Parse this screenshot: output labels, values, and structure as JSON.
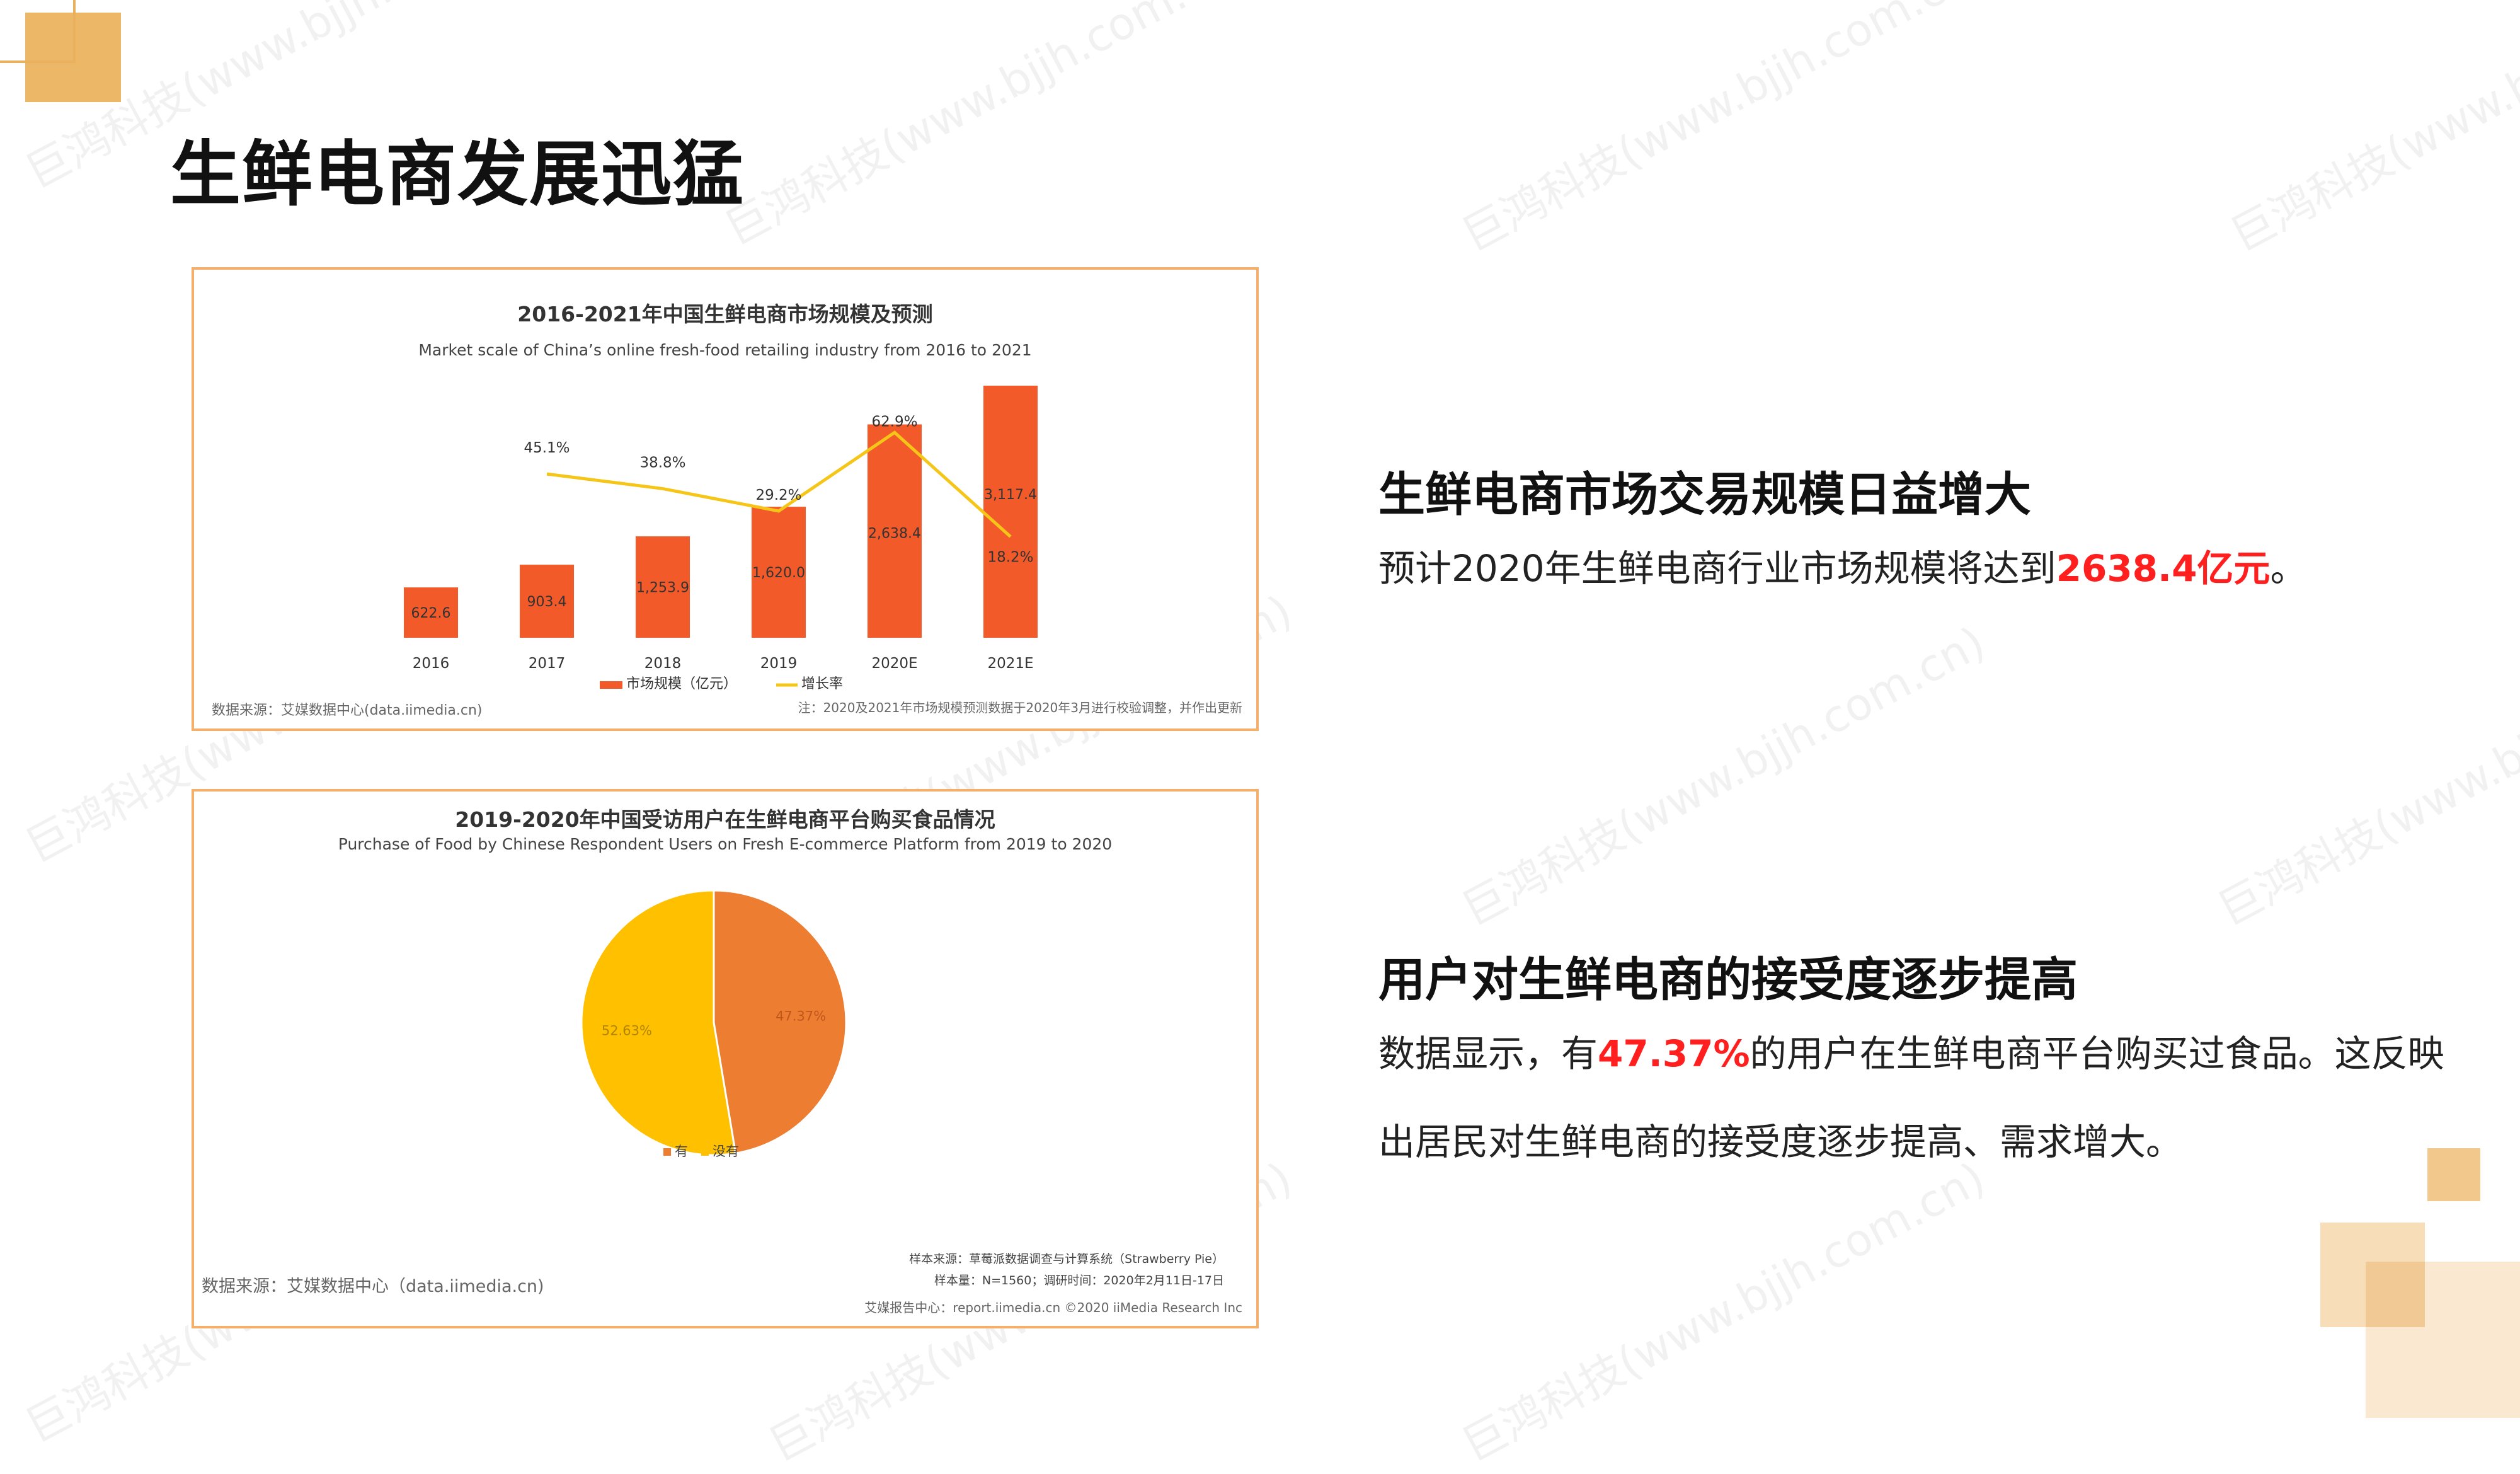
{
  "slide": {
    "title": "生鲜电商发展迅猛",
    "watermark": "巨鸿科技(www.bjjh.com.cn)"
  },
  "right": {
    "s1_heading": "生鲜电商市场交易规模日益增大",
    "s1_text_pre": "预计2020年生鲜电商行业市场规模将达到",
    "s1_highlight": "2638.4亿元",
    "s1_text_post": "。",
    "s2_heading": "用户对生鲜电商的接受度逐步提高",
    "s2_line1_pre": "数据显示，有",
    "s2_highlight": "47.37%",
    "s2_line1_post": "的用户在生鲜电商平台购买过食品。这反映",
    "s2_line2": "出居民对生鲜电商的接受度逐步提高、需求增大。"
  },
  "colors": {
    "bar": "#f25a2a",
    "line": "#f5c518",
    "pie_you": "#ed7d31",
    "pie_meiyou": "#ffc000",
    "highlight": "#ff1f1f",
    "frame": "#f4b06a"
  },
  "chart_data": [
    {
      "type": "bar",
      "title": "2016-2021年中国生鲜电商市场规模及预测",
      "subtitle": "Market scale of China’s online fresh-food retailing industry from 2016 to 2021",
      "categories": [
        "2016",
        "2017",
        "2018",
        "2019",
        "2020E",
        "2021E"
      ],
      "series": [
        {
          "name": "市场规模（亿元）",
          "type": "bar",
          "values": [
            622.6,
            903.4,
            1253.9,
            1620.0,
            2638.4,
            3117.4
          ],
          "labels": [
            "622.6",
            "903.4",
            "1,253.9",
            "1,620.0",
            "2,638.4",
            "3,117.4"
          ]
        },
        {
          "name": "增长率",
          "type": "line",
          "values": [
            null,
            45.1,
            38.8,
            29.2,
            62.9,
            18.2
          ],
          "labels": [
            "",
            "45.1%",
            "38.8%",
            "29.2%",
            "62.9%",
            "18.2%"
          ]
        }
      ],
      "source": "数据来源：艾媒数据中心(data.iimedia.cn)",
      "note": "注：2020及2021年市场规模预测数据于2020年3月进行校验调整，并作出更新",
      "legend": "bottom"
    },
    {
      "type": "pie",
      "title": "2019-2020年中国受访用户在生鲜电商平台购买食品情况",
      "subtitle": "Purchase of Food by Chinese Respondent Users on Fresh E-commerce Platform from 2019 to 2020",
      "slices": [
        {
          "label": "有",
          "value": 47.37,
          "text": "47.37%"
        },
        {
          "label": "没有",
          "value": 52.63,
          "text": "52.63%"
        }
      ],
      "source": "数据来源：艾媒数据中心（data.iimedia.cn)",
      "sample_source": "样本来源：草莓派数据调查与计算系统（Strawberry Pie）",
      "sample_info": "样本量：N=1560；调研时间：2020年2月11日-17日",
      "footer": "艾媒报告中心：report.iimedia.cn ©2020 iiMedia Research Inc",
      "legend": "bottom"
    }
  ]
}
